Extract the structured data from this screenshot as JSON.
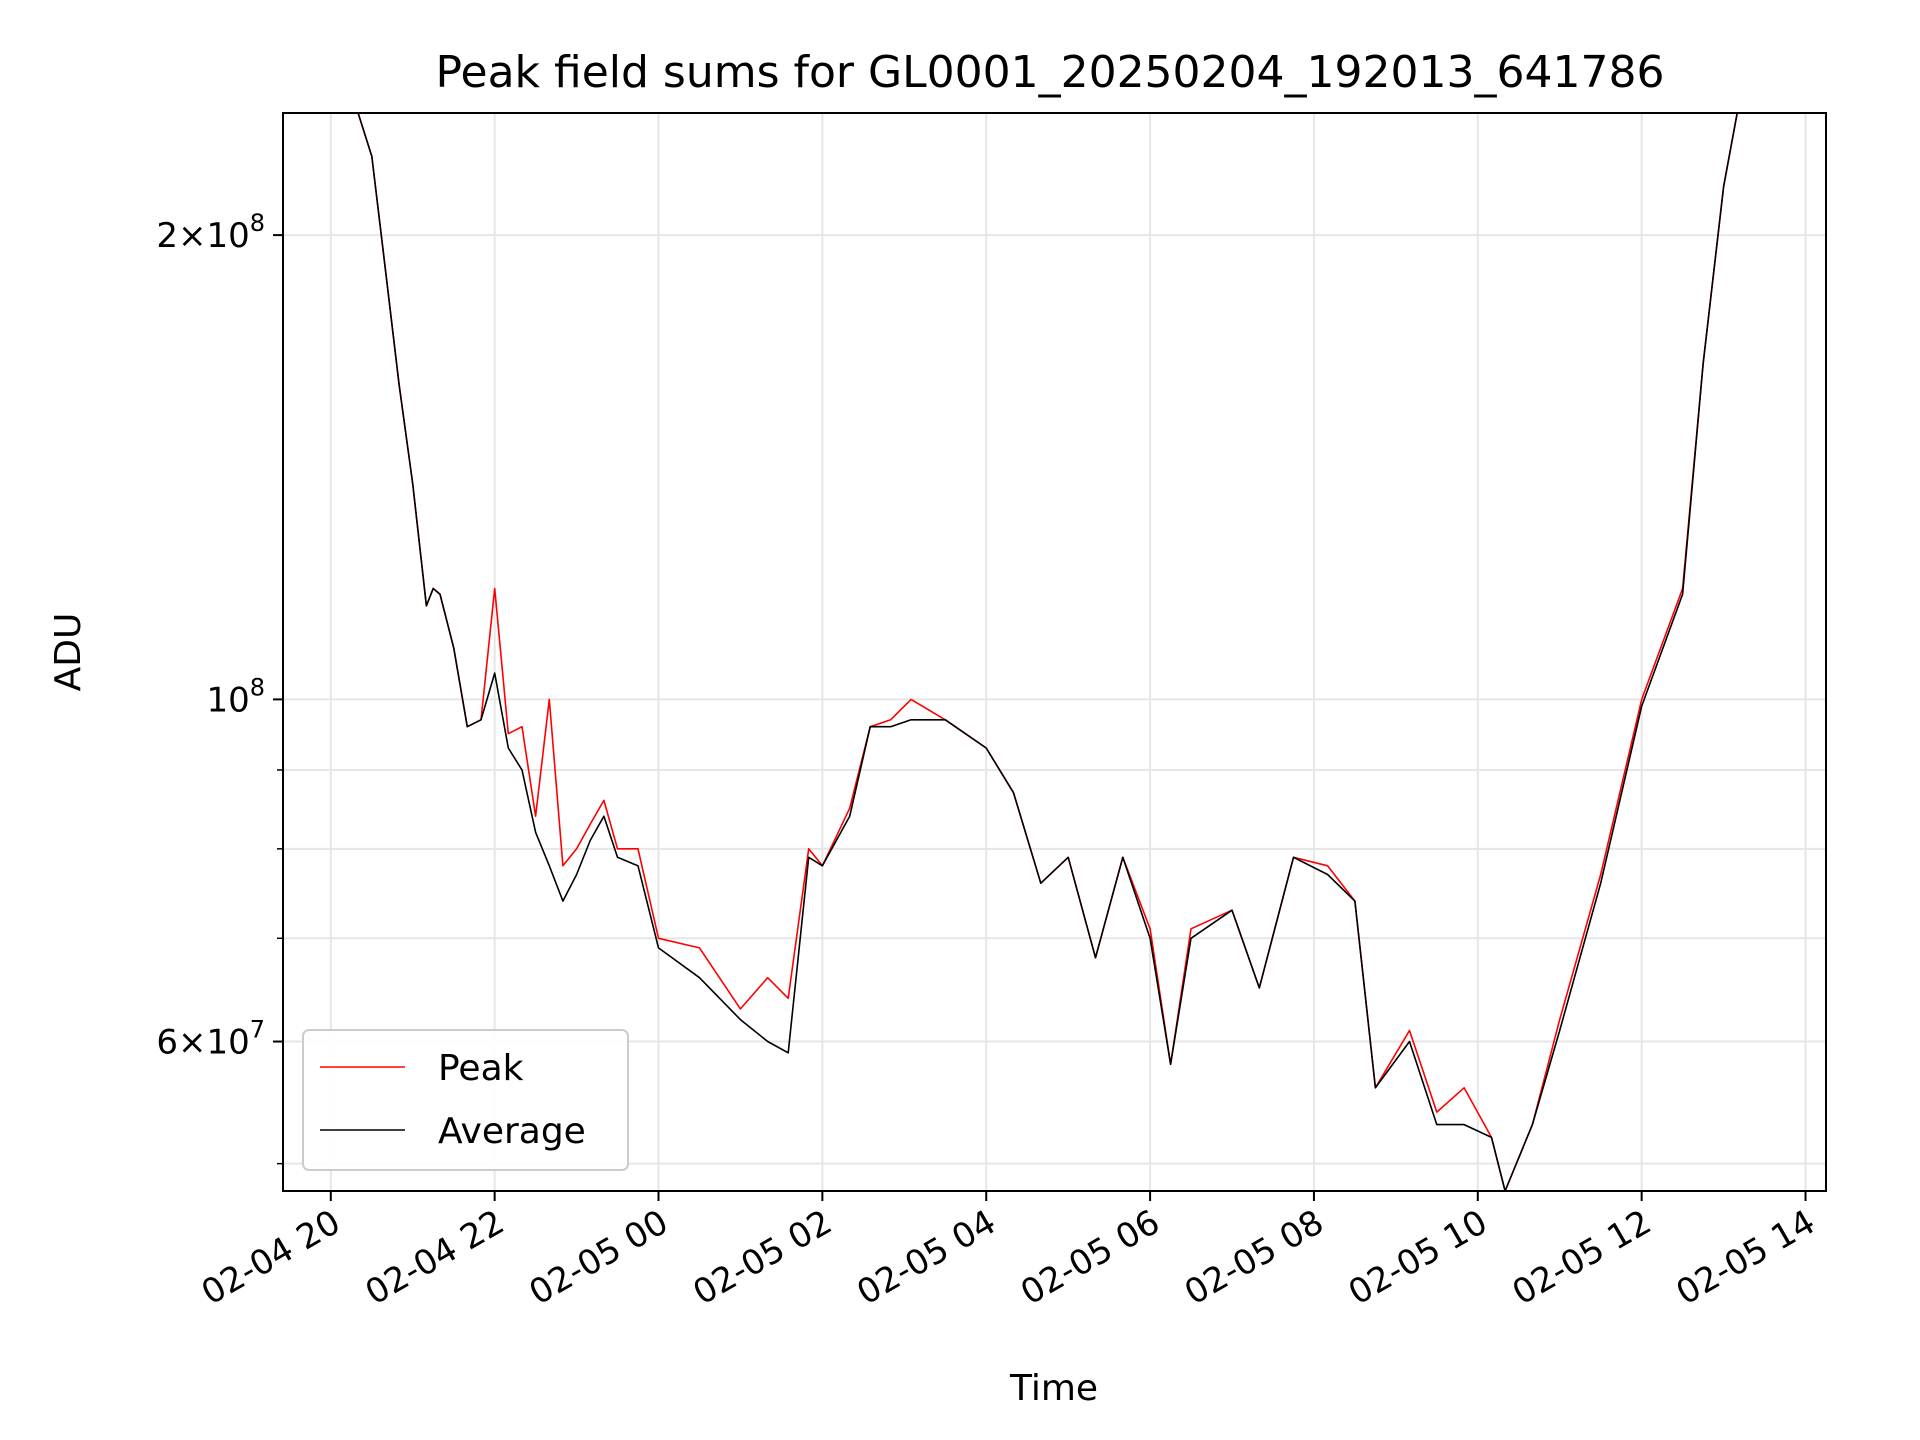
{
  "chart_data": {
    "type": "line",
    "title": "Peak field sums for GL0001_20250204_192013_641786",
    "xlabel": "Time",
    "ylabel": "ADU",
    "yscale": "log",
    "grid": true,
    "legend_position": "lower-left",
    "xlim": [
      "2025-02-04 19:25",
      "2025-02-05 14:15"
    ],
    "ylim": [
      48000000,
      240000000
    ],
    "x_ticks": [
      {
        "value": "2025-02-04 20:00",
        "label": "02-04 20"
      },
      {
        "value": "2025-02-04 22:00",
        "label": "02-04 22"
      },
      {
        "value": "2025-02-05 00:00",
        "label": "02-05 00"
      },
      {
        "value": "2025-02-05 02:00",
        "label": "02-05 02"
      },
      {
        "value": "2025-02-05 04:00",
        "label": "02-05 04"
      },
      {
        "value": "2025-02-05 06:00",
        "label": "02-05 06"
      },
      {
        "value": "2025-02-05 08:00",
        "label": "02-05 08"
      },
      {
        "value": "2025-02-05 10:00",
        "label": "02-05 10"
      },
      {
        "value": "2025-02-05 12:00",
        "label": "02-05 12"
      },
      {
        "value": "2025-02-05 14:00",
        "label": "02-05 14"
      }
    ],
    "y_ticks_major": [
      {
        "value": 200000000,
        "mant": "2",
        "exp": "8"
      },
      {
        "value": 100000000,
        "mant": "",
        "exp": "8"
      },
      {
        "value": 60000000,
        "mant": "6",
        "exp": "7"
      }
    ],
    "y_ticks_minor": [
      50000000,
      70000000,
      80000000,
      90000000
    ],
    "series": [
      {
        "name": "Peak",
        "color": "#ff0000",
        "points": [
          [
            "2025-02-04 19:35",
            240000000
          ],
          [
            "2025-02-04 20:20",
            240000000
          ],
          [
            "2025-02-04 20:30",
            225000000
          ],
          [
            "2025-02-04 20:40",
            190000000
          ],
          [
            "2025-02-04 20:50",
            160000000
          ],
          [
            "2025-02-04 21:00",
            138000000
          ],
          [
            "2025-02-04 21:10",
            115000000
          ],
          [
            "2025-02-04 21:15",
            118000000
          ],
          [
            "2025-02-04 21:20",
            117000000
          ],
          [
            "2025-02-04 21:30",
            108000000
          ],
          [
            "2025-02-04 21:40",
            96000000
          ],
          [
            "2025-02-04 21:50",
            97000000
          ],
          [
            "2025-02-04 22:00",
            118000000
          ],
          [
            "2025-02-04 22:10",
            95000000
          ],
          [
            "2025-02-04 22:20",
            96000000
          ],
          [
            "2025-02-04 22:30",
            84000000
          ],
          [
            "2025-02-04 22:40",
            100000000
          ],
          [
            "2025-02-04 22:50",
            78000000
          ],
          [
            "2025-02-04 23:00",
            80000000
          ],
          [
            "2025-02-04 23:10",
            83000000
          ],
          [
            "2025-02-04 23:20",
            86000000
          ],
          [
            "2025-02-04 23:30",
            80000000
          ],
          [
            "2025-02-04 23:45",
            80000000
          ],
          [
            "2025-02-05 00:00",
            70000000
          ],
          [
            "2025-02-05 00:30",
            69000000
          ],
          [
            "2025-02-05 01:00",
            63000000
          ],
          [
            "2025-02-05 01:20",
            66000000
          ],
          [
            "2025-02-05 01:35",
            64000000
          ],
          [
            "2025-02-05 01:50",
            80000000
          ],
          [
            "2025-02-05 02:00",
            78000000
          ],
          [
            "2025-02-05 02:20",
            85000000
          ],
          [
            "2025-02-05 02:35",
            96000000
          ],
          [
            "2025-02-05 02:50",
            97000000
          ],
          [
            "2025-02-05 03:05",
            100000000
          ],
          [
            "2025-02-05 03:30",
            97000000
          ],
          [
            "2025-02-05 04:00",
            93000000
          ],
          [
            "2025-02-05 04:20",
            87000000
          ],
          [
            "2025-02-05 04:40",
            76000000
          ],
          [
            "2025-02-05 05:00",
            79000000
          ],
          [
            "2025-02-05 05:20",
            68000000
          ],
          [
            "2025-02-05 05:40",
            79000000
          ],
          [
            "2025-02-05 06:00",
            71000000
          ],
          [
            "2025-02-05 06:15",
            58000000
          ],
          [
            "2025-02-05 06:30",
            71000000
          ],
          [
            "2025-02-05 07:00",
            73000000
          ],
          [
            "2025-02-05 07:20",
            65000000
          ],
          [
            "2025-02-05 07:45",
            79000000
          ],
          [
            "2025-02-05 08:10",
            78000000
          ],
          [
            "2025-02-05 08:30",
            74000000
          ],
          [
            "2025-02-05 08:45",
            56000000
          ],
          [
            "2025-02-05 09:10",
            61000000
          ],
          [
            "2025-02-05 09:30",
            54000000
          ],
          [
            "2025-02-05 09:50",
            56000000
          ],
          [
            "2025-02-05 10:10",
            52000000
          ],
          [
            "2025-02-05 10:20",
            48000000
          ],
          [
            "2025-02-05 10:40",
            53000000
          ],
          [
            "2025-02-05 11:00",
            62000000
          ],
          [
            "2025-02-05 11:30",
            77000000
          ],
          [
            "2025-02-05 12:00",
            100000000
          ],
          [
            "2025-02-05 12:30",
            118000000
          ],
          [
            "2025-02-05 12:45",
            165000000
          ],
          [
            "2025-02-05 13:00",
            215000000
          ],
          [
            "2025-02-05 13:10",
            240000000
          ],
          [
            "2025-02-05 14:10",
            240000000
          ]
        ]
      },
      {
        "name": "Average",
        "color": "#000000",
        "points": [
          [
            "2025-02-04 19:35",
            240000000
          ],
          [
            "2025-02-04 20:20",
            240000000
          ],
          [
            "2025-02-04 20:30",
            225000000
          ],
          [
            "2025-02-04 20:40",
            190000000
          ],
          [
            "2025-02-04 20:50",
            160000000
          ],
          [
            "2025-02-04 21:00",
            138000000
          ],
          [
            "2025-02-04 21:10",
            115000000
          ],
          [
            "2025-02-04 21:15",
            118000000
          ],
          [
            "2025-02-04 21:20",
            117000000
          ],
          [
            "2025-02-04 21:30",
            108000000
          ],
          [
            "2025-02-04 21:40",
            96000000
          ],
          [
            "2025-02-04 21:50",
            97000000
          ],
          [
            "2025-02-04 22:00",
            104000000
          ],
          [
            "2025-02-04 22:10",
            93000000
          ],
          [
            "2025-02-04 22:20",
            90000000
          ],
          [
            "2025-02-04 22:30",
            82000000
          ],
          [
            "2025-02-04 22:40",
            78000000
          ],
          [
            "2025-02-04 22:50",
            74000000
          ],
          [
            "2025-02-04 23:00",
            77000000
          ],
          [
            "2025-02-04 23:10",
            81000000
          ],
          [
            "2025-02-04 23:20",
            84000000
          ],
          [
            "2025-02-04 23:30",
            79000000
          ],
          [
            "2025-02-04 23:45",
            78000000
          ],
          [
            "2025-02-05 00:00",
            69000000
          ],
          [
            "2025-02-05 00:30",
            66000000
          ],
          [
            "2025-02-05 01:00",
            62000000
          ],
          [
            "2025-02-05 01:20",
            60000000
          ],
          [
            "2025-02-05 01:35",
            59000000
          ],
          [
            "2025-02-05 01:50",
            79000000
          ],
          [
            "2025-02-05 02:00",
            78000000
          ],
          [
            "2025-02-05 02:20",
            84000000
          ],
          [
            "2025-02-05 02:35",
            96000000
          ],
          [
            "2025-02-05 02:50",
            96000000
          ],
          [
            "2025-02-05 03:05",
            97000000
          ],
          [
            "2025-02-05 03:30",
            97000000
          ],
          [
            "2025-02-05 04:00",
            93000000
          ],
          [
            "2025-02-05 04:20",
            87000000
          ],
          [
            "2025-02-05 04:40",
            76000000
          ],
          [
            "2025-02-05 05:00",
            79000000
          ],
          [
            "2025-02-05 05:20",
            68000000
          ],
          [
            "2025-02-05 05:40",
            79000000
          ],
          [
            "2025-02-05 06:00",
            70000000
          ],
          [
            "2025-02-05 06:15",
            58000000
          ],
          [
            "2025-02-05 06:30",
            70000000
          ],
          [
            "2025-02-05 07:00",
            73000000
          ],
          [
            "2025-02-05 07:20",
            65000000
          ],
          [
            "2025-02-05 07:45",
            79000000
          ],
          [
            "2025-02-05 08:10",
            77000000
          ],
          [
            "2025-02-05 08:30",
            74000000
          ],
          [
            "2025-02-05 08:45",
            56000000
          ],
          [
            "2025-02-05 09:10",
            60000000
          ],
          [
            "2025-02-05 09:30",
            53000000
          ],
          [
            "2025-02-05 09:50",
            53000000
          ],
          [
            "2025-02-05 10:10",
            52000000
          ],
          [
            "2025-02-05 10:20",
            48000000
          ],
          [
            "2025-02-05 10:40",
            53000000
          ],
          [
            "2025-02-05 11:00",
            61000000
          ],
          [
            "2025-02-05 11:30",
            76000000
          ],
          [
            "2025-02-05 12:00",
            99000000
          ],
          [
            "2025-02-05 12:30",
            117000000
          ],
          [
            "2025-02-05 12:45",
            165000000
          ],
          [
            "2025-02-05 13:00",
            215000000
          ],
          [
            "2025-02-05 13:10",
            240000000
          ],
          [
            "2025-02-05 14:10",
            240000000
          ]
        ]
      }
    ]
  }
}
